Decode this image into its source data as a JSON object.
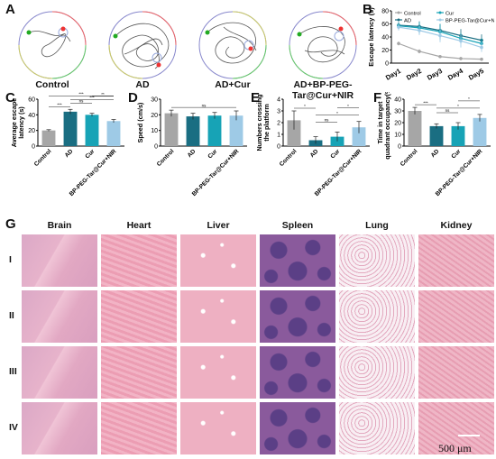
{
  "panels": {
    "A": "A",
    "B": "B",
    "C": "C",
    "D": "D",
    "E": "E",
    "F": "F",
    "G": "G"
  },
  "groups": [
    "Control",
    "AD",
    "AD+Cur",
    "AD+BP-PEG-Tar@Cur+NIR"
  ],
  "colors": {
    "control": "#a6a6a6",
    "ad": "#1a6e82",
    "cur": "#17a3b6",
    "bp": "#9ecae6",
    "he_pink": "#e8a0b4",
    "spleen_purple": "#8a5a9c",
    "lung_bg": "#f4dbe4"
  },
  "chart_data": [
    {
      "id": "B",
      "type": "line",
      "ylabel": "Escape latency (s)",
      "categories": [
        "Day1",
        "Day2",
        "Day3",
        "Day4",
        "Day5"
      ],
      "ylim": [
        0,
        80
      ],
      "yticks": [
        "0",
        "20",
        "40",
        "60",
        "80"
      ],
      "legend": [
        "Control",
        "Cur",
        "AD",
        "BP-PEG-Tar@Cur+NIR"
      ],
      "series": [
        {
          "name": "Control",
          "values": [
            30,
            18,
            10,
            7,
            6
          ],
          "err": [
            3,
            3,
            2,
            2,
            2
          ]
        },
        {
          "name": "AD",
          "values": [
            58,
            56,
            50,
            42,
            35
          ],
          "err": [
            5,
            8,
            10,
            10,
            9
          ]
        },
        {
          "name": "Cur",
          "values": [
            57,
            54,
            48,
            38,
            30
          ],
          "err": [
            5,
            9,
            12,
            8,
            8
          ]
        },
        {
          "name": "BP-PEG-Tar@Cur+NIR",
          "values": [
            55,
            50,
            42,
            34,
            24
          ],
          "err": [
            5,
            7,
            10,
            10,
            7
          ]
        }
      ]
    },
    {
      "id": "C",
      "type": "bar",
      "ylabel": "Average escape latency (s)",
      "categories": [
        "Control",
        "AD",
        "Cur",
        "BP-PEG-Tar@Cur+NIR"
      ],
      "values": [
        20,
        44,
        40,
        32
      ],
      "err": [
        1,
        3,
        2,
        2
      ],
      "ylim": [
        0,
        60
      ],
      "yticks": [
        "0",
        "20",
        "40",
        "60"
      ],
      "sig": [
        {
          "a": 0,
          "b": 1,
          "label": "***"
        },
        {
          "a": 1,
          "b": 2,
          "label": "ns"
        },
        {
          "a": 1,
          "b": 3,
          "label": "***"
        },
        {
          "a": 0,
          "b": 3,
          "label": "***"
        },
        {
          "a": 2,
          "b": 3,
          "label": "**"
        }
      ]
    },
    {
      "id": "D",
      "type": "bar",
      "ylabel": "Speed (cm/s)",
      "categories": [
        "Control",
        "AD",
        "Cur",
        "BP-PEG-Tar@Cur+NIR"
      ],
      "values": [
        21,
        19,
        19.5,
        19.5
      ],
      "err": [
        2,
        2,
        2,
        3
      ],
      "ylim": [
        0,
        30
      ],
      "yticks": [
        "0",
        "10",
        "20",
        "30"
      ],
      "sig": [
        {
          "a": 0,
          "b": 3,
          "label": "ns"
        }
      ]
    },
    {
      "id": "E",
      "type": "bar",
      "ylabel": "Numbers crossing the platform",
      "categories": [
        "Control",
        "AD",
        "Cur",
        "BP-PEG-Tar@Cur+NIR"
      ],
      "values": [
        2.2,
        0.5,
        0.8,
        1.6
      ],
      "err": [
        0.8,
        0.3,
        0.4,
        0.5
      ],
      "ylim": [
        0,
        4
      ],
      "yticks": [
        "0",
        "1",
        "2",
        "3",
        "4"
      ],
      "sig": [
        {
          "a": 0,
          "b": 1,
          "label": "*"
        },
        {
          "a": 1,
          "b": 3,
          "label": "*"
        },
        {
          "a": 1,
          "b": 2,
          "label": "ns"
        },
        {
          "a": 2,
          "b": 3,
          "label": "*"
        }
      ]
    },
    {
      "id": "F",
      "type": "bar",
      "ylabel": "Time in target quadrant occupancy(%)",
      "categories": [
        "Control",
        "AD",
        "Cur",
        "BP-PEG-Tar@Cur+NIR"
      ],
      "values": [
        30,
        17,
        17,
        24
      ],
      "err": [
        3,
        2,
        3,
        3
      ],
      "ylim": [
        0,
        40
      ],
      "yticks": [
        "0",
        "10",
        "20",
        "30",
        "40"
      ],
      "sig": [
        {
          "a": 0,
          "b": 1,
          "label": "***"
        },
        {
          "a": 1,
          "b": 3,
          "label": "*"
        },
        {
          "a": 1,
          "b": 2,
          "label": "ns"
        },
        {
          "a": 2,
          "b": 3,
          "label": "*"
        }
      ]
    }
  ],
  "histology": {
    "organs": [
      "Brain",
      "Heart",
      "Liver",
      "Spleen",
      "Lung",
      "Kidney"
    ],
    "rows": [
      "I",
      "II",
      "III",
      "IV"
    ],
    "scale_bar": "500 μm"
  }
}
